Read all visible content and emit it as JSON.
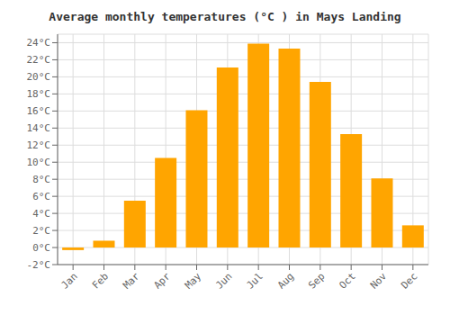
{
  "chart_data": {
    "type": "bar",
    "title": "Average monthly temperatures (°C ) in Mays Landing",
    "categories": [
      "Jan",
      "Feb",
      "Mar",
      "Apr",
      "May",
      "Jun",
      "Jul",
      "Aug",
      "Sep",
      "Oct",
      "Nov",
      "Dec"
    ],
    "values": [
      -0.3,
      0.8,
      5.5,
      10.5,
      16.1,
      21.1,
      23.9,
      23.3,
      19.4,
      13.3,
      8.1,
      2.6
    ],
    "color": "#FFA500",
    "ylim": [
      -2,
      25
    ],
    "yticks": [
      {
        "value": -2,
        "label": "-2°C"
      },
      {
        "value": 0,
        "label": "0°C"
      },
      {
        "value": 2,
        "label": "2°C"
      },
      {
        "value": 4,
        "label": "4°C"
      },
      {
        "value": 6,
        "label": "6°C"
      },
      {
        "value": 8,
        "label": "8°C"
      },
      {
        "value": 10,
        "label": "10°C"
      },
      {
        "value": 12,
        "label": "12°C"
      },
      {
        "value": 14,
        "label": "14°C"
      },
      {
        "value": 16,
        "label": "16°C"
      },
      {
        "value": 18,
        "label": "18°C"
      },
      {
        "value": 20,
        "label": "20°C"
      },
      {
        "value": 22,
        "label": "22°C"
      },
      {
        "value": 24,
        "label": "24°C"
      }
    ],
    "grid": true
  }
}
